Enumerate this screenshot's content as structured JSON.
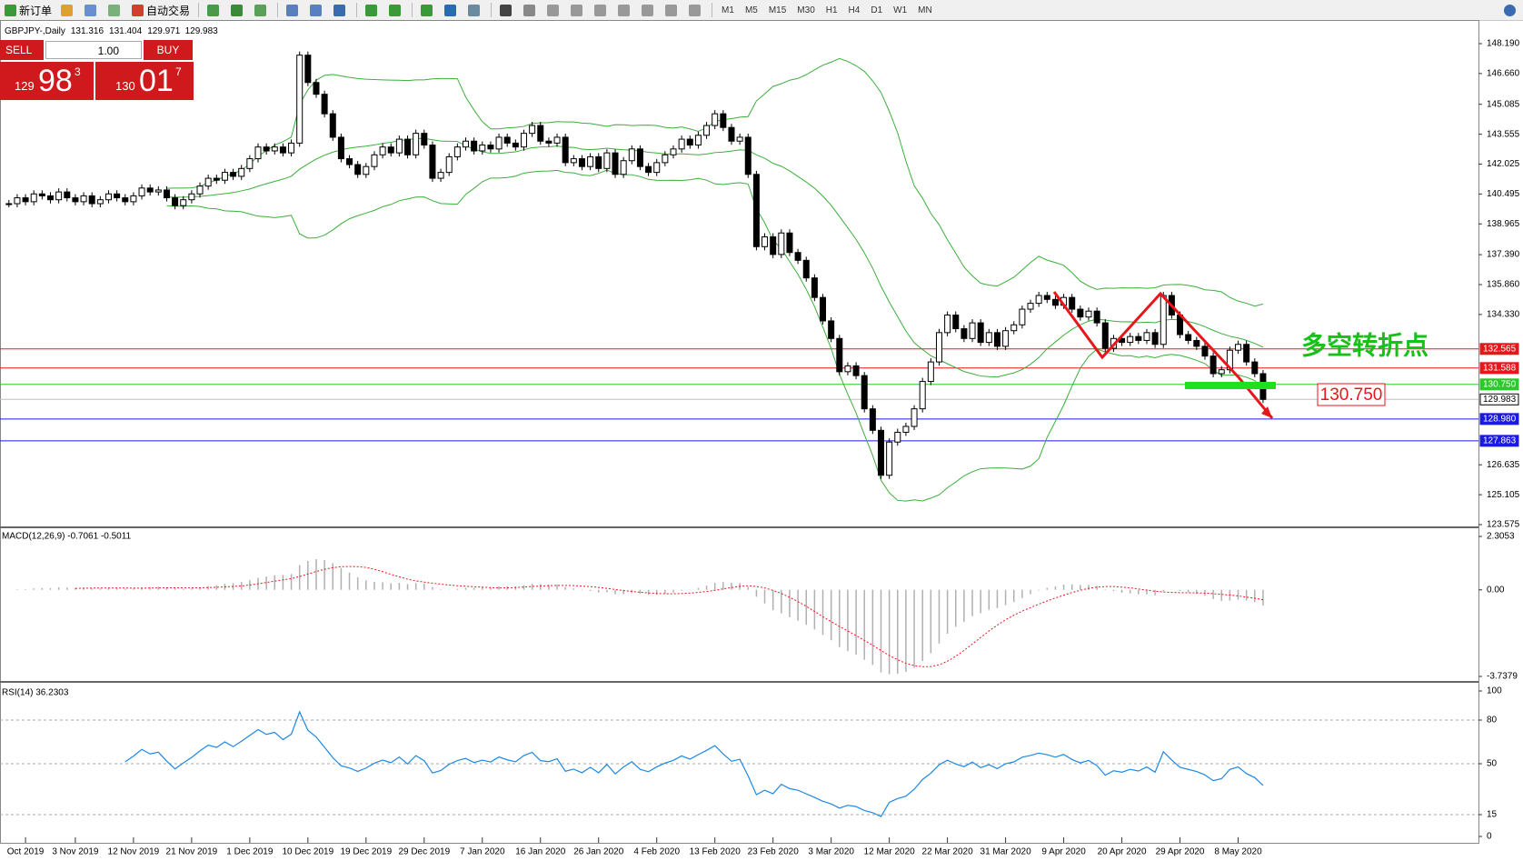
{
  "toolbar": {
    "new_order": "新订单",
    "auto_trade": "自动交易",
    "timeframes": [
      "M1",
      "M5",
      "M15",
      "M30",
      "H1",
      "H4",
      "D1",
      "W1",
      "MN"
    ]
  },
  "trade_panel": {
    "sell": "SELL",
    "buy": "BUY",
    "lot": "1.00",
    "bid": {
      "big": "129",
      "main": "98",
      "small": "3"
    },
    "ask": {
      "big": "130",
      "main": "01",
      "small": "7"
    }
  },
  "chart_data": {
    "type": "candlestick",
    "title": "GBPJPY-,Daily",
    "ohlc": [
      131.316,
      131.404,
      129.971,
      129.983
    ],
    "categories": [
      "Oct 2019",
      "3 Nov 2019",
      "12 Nov 2019",
      "21 Nov 2019",
      "1 Dec 2019",
      "10 Dec 2019",
      "19 Dec 2019",
      "29 Dec 2019",
      "7 Jan 2020",
      "16 Jan 2020",
      "26 Jan 2020",
      "4 Feb 2020",
      "13 Feb 2020",
      "23 Feb 2020",
      "3 Mar 2020",
      "12 Mar 2020",
      "22 Mar 2020",
      "31 Mar 2020",
      "9 Apr 2020",
      "20 Apr 2020",
      "29 Apr 2020",
      "8 May 2020"
    ],
    "closes": [
      140.0,
      140.3,
      140.1,
      140.5,
      140.4,
      140.2,
      140.6,
      140.3,
      140.1,
      140.4,
      140.0,
      140.2,
      140.5,
      140.3,
      140.1,
      140.4,
      140.8,
      140.6,
      140.7,
      140.3,
      139.9,
      140.2,
      140.5,
      140.9,
      141.3,
      141.2,
      141.6,
      141.4,
      141.8,
      142.3,
      142.9,
      142.7,
      142.9,
      142.6,
      143.1,
      147.6,
      146.2,
      145.6,
      144.6,
      143.4,
      142.3,
      142.0,
      141.5,
      141.9,
      142.5,
      142.9,
      142.6,
      143.3,
      142.5,
      143.6,
      143.0,
      141.3,
      141.6,
      142.4,
      142.9,
      143.2,
      142.7,
      143.0,
      142.8,
      143.4,
      143.1,
      142.9,
      143.6,
      144.0,
      143.2,
      143.1,
      143.4,
      142.1,
      142.3,
      141.9,
      142.4,
      141.8,
      142.6,
      141.5,
      142.2,
      142.8,
      141.9,
      141.6,
      142.1,
      142.5,
      142.8,
      143.3,
      143.0,
      143.5,
      144.0,
      144.6,
      143.9,
      143.2,
      143.4,
      141.5,
      137.8,
      138.3,
      137.4,
      138.5,
      137.5,
      137.1,
      136.2,
      135.2,
      134.0,
      133.1,
      131.4,
      131.7,
      131.2,
      129.5,
      128.4,
      126.1,
      127.8,
      128.3,
      128.6,
      129.5,
      130.9,
      131.9,
      133.4,
      134.3,
      133.6,
      133.1,
      133.9,
      132.9,
      133.4,
      132.7,
      133.5,
      133.8,
      134.6,
      134.9,
      135.3,
      135.1,
      134.8,
      135.2,
      134.6,
      134.2,
      134.5,
      133.9,
      132.6,
      133.1,
      132.9,
      133.2,
      133.0,
      133.4,
      132.8,
      135.3,
      134.3,
      133.3,
      133.0,
      132.7,
      132.2,
      131.3,
      131.5,
      132.5,
      132.8,
      131.9,
      131.3,
      129.983
    ],
    "ylim": [
      123.575,
      148.19
    ],
    "yticks": [
      {
        "value": 148.19,
        "label": "148.190"
      },
      {
        "value": 146.66,
        "label": "146.660"
      },
      145.085,
      143.555,
      142.025,
      140.495,
      138.965,
      {
        "value": 137.39,
        "label": "137.390"
      },
      {
        "value": 135.86,
        "label": "135.860"
      },
      {
        "value": 134.33,
        "label": "134.330"
      },
      126.635,
      125.105,
      123.575
    ],
    "levels": [
      {
        "value": 132.565,
        "color": "#e8161a"
      },
      {
        "value": 131.588,
        "color": "#e8161a"
      },
      {
        "value": {
          "value": 130.75,
          "label": "130.750"
        },
        "color": "#2ec82e"
      },
      {
        "value": 129.983,
        "color": "#c0c0c0"
      },
      {
        "value": {
          "value": 128.98,
          "label": "128.980"
        },
        "color": "#1a1ae0"
      },
      {
        "value": 127.863,
        "color": "#1a1ae0"
      }
    ],
    "band_color": "#3cae3c",
    "annotation": {
      "text": "多空转折点",
      "price_label": "130.750"
    }
  },
  "macd": {
    "label": "MACD(12,26,9) -0.7061 -0.5011",
    "ylim": [
      -3.7379,
      2.3053
    ],
    "yticks": [
      2.3053,
      {
        "value": 0,
        "label": "0.00"
      },
      -3.7379
    ]
  },
  "rsi": {
    "label": "RSI(14) 36.2303",
    "ylim": [
      0,
      100
    ],
    "yticks": [
      100,
      80,
      50,
      15,
      0
    ],
    "color": "#1e88e5"
  }
}
